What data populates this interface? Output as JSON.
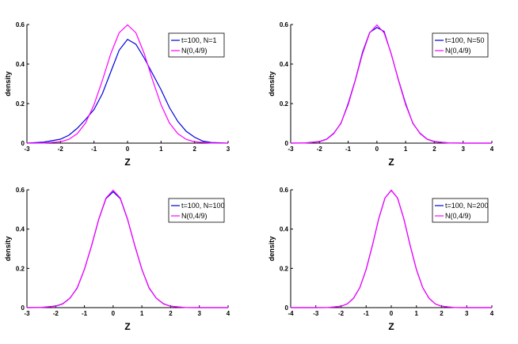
{
  "figure": {
    "colors": {
      "simulated": "#0000e0",
      "normal": "#ff00ff"
    }
  },
  "chart_data": [
    {
      "type": "line",
      "xlabel": "Z",
      "ylabel": "density",
      "xlim": [
        -3,
        3
      ],
      "ylim": [
        0,
        0.6
      ],
      "xticks": [
        "-3",
        "-2",
        "-1",
        "0",
        "1",
        "2",
        "3"
      ],
      "yticks": [
        "0",
        "0.2",
        "0.4",
        "0.6"
      ],
      "legend_position": "top-right",
      "grid": false,
      "series": [
        {
          "name": "t=100, N=1",
          "color": "#0000e0",
          "x": [
            -3,
            -2.5,
            -2,
            -1.75,
            -1.5,
            -1.25,
            -1,
            -0.75,
            -0.5,
            -0.25,
            0,
            0.25,
            0.5,
            0.75,
            1,
            1.25,
            1.5,
            1.75,
            2,
            2.25,
            2.5,
            3
          ],
          "y": [
            0,
            0.005,
            0.02,
            0.04,
            0.075,
            0.12,
            0.17,
            0.25,
            0.36,
            0.47,
            0.525,
            0.5,
            0.43,
            0.35,
            0.27,
            0.18,
            0.11,
            0.06,
            0.03,
            0.01,
            0.003,
            0
          ]
        },
        {
          "name": "N(0,4/9)",
          "color": "#ff00ff",
          "x": [
            -3,
            -2.5,
            -2,
            -1.75,
            -1.5,
            -1.25,
            -1,
            -0.75,
            -0.5,
            -0.25,
            0,
            0.25,
            0.5,
            0.75,
            1,
            1.25,
            1.5,
            1.75,
            2,
            2.5,
            3
          ],
          "y": [
            0,
            0.0005,
            0.007,
            0.019,
            0.048,
            0.102,
            0.194,
            0.317,
            0.452,
            0.558,
            0.598,
            0.558,
            0.452,
            0.317,
            0.194,
            0.102,
            0.048,
            0.019,
            0.007,
            0.0005,
            0
          ]
        }
      ]
    },
    {
      "type": "line",
      "xlabel": "Z",
      "ylabel": "density",
      "xlim": [
        -3,
        4
      ],
      "ylim": [
        0,
        0.6
      ],
      "xticks": [
        "-3",
        "-2",
        "-1",
        "0",
        "1",
        "2",
        "3",
        "4"
      ],
      "yticks": [
        "0",
        "0.2",
        "0.4",
        "0.6"
      ],
      "legend_position": "top-right",
      "grid": false,
      "series": [
        {
          "name": "t=100, N=50",
          "color": "#0000e0",
          "x": [
            -3,
            -2.5,
            -2,
            -1.75,
            -1.5,
            -1.25,
            -1,
            -0.75,
            -0.5,
            -0.25,
            0,
            0.25,
            0.5,
            0.75,
            1,
            1.25,
            1.5,
            1.75,
            2,
            2.5,
            3,
            4
          ],
          "y": [
            0,
            0.001,
            0.008,
            0.02,
            0.05,
            0.1,
            0.2,
            0.32,
            0.46,
            0.56,
            0.585,
            0.565,
            0.45,
            0.32,
            0.2,
            0.1,
            0.05,
            0.02,
            0.008,
            0.001,
            0,
            0
          ]
        },
        {
          "name": "N(0,4/9)",
          "color": "#ff00ff",
          "x": [
            -3,
            -2.5,
            -2,
            -1.75,
            -1.5,
            -1.25,
            -1,
            -0.75,
            -0.5,
            -0.25,
            0,
            0.25,
            0.5,
            0.75,
            1,
            1.25,
            1.5,
            1.75,
            2,
            2.5,
            3,
            4
          ],
          "y": [
            0,
            0.0005,
            0.007,
            0.019,
            0.048,
            0.102,
            0.194,
            0.317,
            0.452,
            0.558,
            0.598,
            0.558,
            0.452,
            0.317,
            0.194,
            0.102,
            0.048,
            0.019,
            0.007,
            0.0005,
            0,
            0
          ]
        }
      ]
    },
    {
      "type": "line",
      "xlabel": "Z",
      "ylabel": "density",
      "xlim": [
        -3,
        4
      ],
      "ylim": [
        0,
        0.6
      ],
      "xticks": [
        "-3",
        "-2",
        "-1",
        "0",
        "1",
        "2",
        "3",
        "4"
      ],
      "yticks": [
        "0",
        "0.2",
        "0.4",
        "0.6"
      ],
      "legend_position": "top-right",
      "grid": false,
      "series": [
        {
          "name": "t=100, N=100",
          "color": "#0000e0",
          "x": [
            -3,
            -2.5,
            -2,
            -1.75,
            -1.5,
            -1.25,
            -1,
            -0.75,
            -0.5,
            -0.25,
            0,
            0.25,
            0.5,
            0.75,
            1,
            1.25,
            1.5,
            1.75,
            2,
            2.5,
            3,
            4
          ],
          "y": [
            0,
            0.001,
            0.008,
            0.02,
            0.049,
            0.1,
            0.195,
            0.315,
            0.45,
            0.555,
            0.59,
            0.555,
            0.45,
            0.318,
            0.195,
            0.1,
            0.048,
            0.02,
            0.007,
            0.0005,
            0,
            0
          ]
        },
        {
          "name": "N(0,4/9)",
          "color": "#ff00ff",
          "x": [
            -3,
            -2.5,
            -2,
            -1.75,
            -1.5,
            -1.25,
            -1,
            -0.75,
            -0.5,
            -0.25,
            0,
            0.25,
            0.5,
            0.75,
            1,
            1.25,
            1.5,
            1.75,
            2,
            2.5,
            3,
            4
          ],
          "y": [
            0,
            0.0005,
            0.007,
            0.019,
            0.048,
            0.102,
            0.194,
            0.317,
            0.452,
            0.558,
            0.598,
            0.558,
            0.452,
            0.317,
            0.194,
            0.102,
            0.048,
            0.019,
            0.007,
            0.0005,
            0,
            0
          ]
        }
      ]
    },
    {
      "type": "line",
      "xlabel": "Z",
      "ylabel": "density",
      "xlim": [
        -4,
        4
      ],
      "ylim": [
        0,
        0.6
      ],
      "xticks": [
        "-4",
        "-3",
        "-2",
        "-1",
        "0",
        "1",
        "2",
        "3",
        "4"
      ],
      "yticks": [
        "0",
        "0.2",
        "0.4",
        "0.6"
      ],
      "legend_position": "top-right",
      "grid": false,
      "series": [
        {
          "name": "t=100, N=200",
          "color": "#0000e0",
          "x": [
            -4,
            -3,
            -2.5,
            -2,
            -1.75,
            -1.5,
            -1.25,
            -1,
            -0.75,
            -0.5,
            -0.25,
            0,
            0.25,
            0.5,
            0.75,
            1,
            1.25,
            1.5,
            1.75,
            2,
            2.5,
            3,
            4
          ],
          "y": [
            0,
            0,
            0.0005,
            0.007,
            0.019,
            0.048,
            0.102,
            0.194,
            0.317,
            0.452,
            0.558,
            0.597,
            0.558,
            0.452,
            0.317,
            0.194,
            0.102,
            0.048,
            0.019,
            0.007,
            0.0005,
            0,
            0
          ]
        },
        {
          "name": "N(0,4/9)",
          "color": "#ff00ff",
          "x": [
            -4,
            -3,
            -2.5,
            -2,
            -1.75,
            -1.5,
            -1.25,
            -1,
            -0.75,
            -0.5,
            -0.25,
            0,
            0.25,
            0.5,
            0.75,
            1,
            1.25,
            1.5,
            1.75,
            2,
            2.5,
            3,
            4
          ],
          "y": [
            0,
            0,
            0.0005,
            0.007,
            0.019,
            0.048,
            0.102,
            0.194,
            0.317,
            0.452,
            0.558,
            0.598,
            0.558,
            0.452,
            0.317,
            0.194,
            0.102,
            0.048,
            0.019,
            0.007,
            0.0005,
            0,
            0
          ]
        }
      ]
    }
  ]
}
